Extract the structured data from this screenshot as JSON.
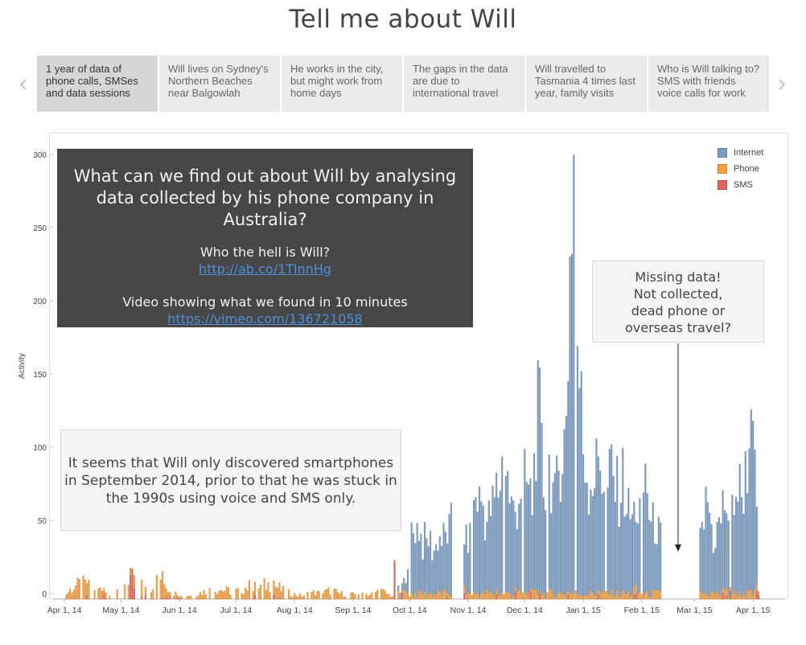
{
  "page": {
    "title": "Tell me about Will"
  },
  "navigation": {
    "prev_glyph": "‹",
    "next_glyph": "›",
    "tabs": [
      {
        "label": "1 year of data of phone calls, SMSes and data sessions",
        "active": true
      },
      {
        "label": "Will lives on Sydney's Northern Beaches near Balgowlah",
        "active": false
      },
      {
        "label": "He works in the city, but might work from home days",
        "active": false
      },
      {
        "label": "The gaps in the data are due to international travel",
        "active": false
      },
      {
        "label": "Will travelled to Tasmania 4 times last year, family visits",
        "active": false
      },
      {
        "label": "Who is Will talking to? SMS with friends voice calls for work",
        "active": false
      }
    ]
  },
  "overlay": {
    "heading": "What can we find out about  Will by analysing data collected by his phone company in Australia?",
    "question": "Who the hell is Will?",
    "link1": "http://ab.co/1TlnnHg",
    "video_text": "Video showing what we found in 10 minutes",
    "link2": "https://vimeo.com/136721058"
  },
  "annotations": {
    "missing": "Missing data!\nNot collected,\ndead phone or\noverseas travel?",
    "smartphone": "It seems that Will only discovered smartphones in September 2014, prior to that he was stuck in the 1990s using voice and SMS only."
  },
  "chart_data": {
    "type": "bar",
    "stacked": true,
    "x_start": "2014-03-26",
    "x_end": "2015-04-18",
    "xlabel": "",
    "ylabel": "Activity",
    "ylim": [
      0,
      300
    ],
    "yticks": [
      0,
      50,
      100,
      150,
      200,
      250,
      300
    ],
    "xticks": [
      {
        "label": "Apr 1, 14",
        "date": "2014-04-01"
      },
      {
        "label": "May 1, 14",
        "date": "2014-05-01"
      },
      {
        "label": "Jun 1, 14",
        "date": "2014-06-01"
      },
      {
        "label": "Jul 1, 14",
        "date": "2014-07-01"
      },
      {
        "label": "Aug 1, 14",
        "date": "2014-08-01"
      },
      {
        "label": "Sep 1, 14",
        "date": "2014-09-01"
      },
      {
        "label": "Oct 1, 14",
        "date": "2014-10-01"
      },
      {
        "label": "Nov 1, 14",
        "date": "2014-11-01"
      },
      {
        "label": "Dec 1, 14",
        "date": "2014-12-01"
      },
      {
        "label": "Jan 1, 15",
        "date": "2015-01-01"
      },
      {
        "label": "Feb 1, 15",
        "date": "2015-02-01"
      },
      {
        "label": "Mar 1, 15",
        "date": "2015-03-01"
      },
      {
        "label": "Apr 1, 15",
        "date": "2015-04-01"
      }
    ],
    "legend_position": "top-right",
    "grid": false,
    "colors": {
      "Internet": "#7b9dc5",
      "Phone": "#f3a141",
      "SMS": "#e0665d"
    },
    "series_names": [
      "Internet",
      "Phone",
      "SMS"
    ],
    "internet_points": [
      [
        "2014-09-25",
        3
      ],
      [
        "2014-09-27",
        5
      ],
      [
        "2014-09-29",
        10
      ],
      [
        "2014-10-01",
        45
      ],
      [
        "2014-10-03",
        52
      ],
      [
        "2014-10-05",
        55
      ],
      [
        "2014-10-08",
        40
      ],
      [
        "2014-10-11",
        44
      ],
      [
        "2014-10-14",
        35
      ],
      [
        "2014-10-17",
        44
      ],
      [
        "2014-10-20",
        42
      ],
      [
        "2014-10-23",
        56
      ],
      [
        "2014-10-26",
        0
      ],
      [
        "2014-10-28",
        0
      ],
      [
        "2014-10-30",
        40
      ],
      [
        "2014-11-02",
        45
      ],
      [
        "2014-11-05",
        78
      ],
      [
        "2014-11-08",
        75
      ],
      [
        "2014-11-11",
        55
      ],
      [
        "2014-11-14",
        70
      ],
      [
        "2014-11-17",
        85
      ],
      [
        "2014-11-20",
        110
      ],
      [
        "2014-11-23",
        78
      ],
      [
        "2014-11-26",
        60
      ],
      [
        "2014-11-29",
        85
      ],
      [
        "2014-12-02",
        88
      ],
      [
        "2014-12-05",
        68
      ],
      [
        "2014-12-08",
        160
      ],
      [
        "2014-12-11",
        85
      ],
      [
        "2014-12-14",
        100
      ],
      [
        "2014-12-17",
        75
      ],
      [
        "2014-12-20",
        110
      ],
      [
        "2014-12-23",
        130
      ],
      [
        "2014-12-25",
        232
      ],
      [
        "2014-12-27",
        300
      ],
      [
        "2014-12-29",
        200
      ],
      [
        "2015-01-01",
        120
      ],
      [
        "2015-01-04",
        88
      ],
      [
        "2015-01-07",
        95
      ],
      [
        "2015-01-10",
        110
      ],
      [
        "2015-01-13",
        75
      ],
      [
        "2015-01-16",
        100
      ],
      [
        "2015-01-19",
        80
      ],
      [
        "2015-01-22",
        90
      ],
      [
        "2015-01-25",
        65
      ],
      [
        "2015-01-28",
        60
      ],
      [
        "2015-01-31",
        65
      ],
      [
        "2015-02-03",
        95
      ],
      [
        "2015-02-06",
        55
      ],
      [
        "2015-02-09",
        50
      ],
      [
        "2015-02-22",
        0
      ],
      [
        "2015-02-28",
        0
      ],
      [
        "2015-03-05",
        50
      ],
      [
        "2015-03-08",
        78
      ],
      [
        "2015-03-11",
        40
      ],
      [
        "2015-03-14",
        55
      ],
      [
        "2015-03-17",
        70
      ],
      [
        "2015-03-20",
        60
      ],
      [
        "2015-03-23",
        85
      ],
      [
        "2015-03-26",
        80
      ],
      [
        "2015-03-29",
        105
      ],
      [
        "2015-03-31",
        123
      ],
      [
        "2015-04-02",
        95
      ],
      [
        "2015-04-04",
        0
      ]
    ],
    "gaps": [
      [
        "2014-10-24",
        "2014-10-29"
      ],
      [
        "2015-02-12",
        "2015-03-03"
      ]
    ],
    "phone_sms_points": [
      [
        "2014-04-01",
        3,
        0
      ],
      [
        "2014-04-05",
        10,
        0
      ],
      [
        "2014-04-10",
        14,
        0
      ],
      [
        "2014-04-15",
        11,
        4
      ],
      [
        "2014-04-22",
        8,
        4
      ],
      [
        "2014-04-28",
        6,
        0
      ],
      [
        "2014-05-03",
        12,
        4
      ],
      [
        "2014-05-06",
        7,
        15
      ],
      [
        "2014-05-10",
        15,
        0
      ],
      [
        "2014-05-14",
        10,
        4
      ],
      [
        "2014-05-18",
        12,
        3
      ],
      [
        "2014-05-22",
        20,
        0
      ],
      [
        "2014-05-26",
        8,
        3
      ],
      [
        "2014-05-30",
        5,
        2
      ],
      [
        "2014-06-05",
        3,
        0
      ],
      [
        "2014-06-10",
        5,
        0
      ],
      [
        "2014-06-15",
        7,
        0
      ],
      [
        "2014-06-20",
        9,
        0
      ],
      [
        "2014-06-25",
        8,
        0
      ],
      [
        "2014-07-01",
        7,
        0
      ],
      [
        "2014-07-05",
        10,
        0
      ],
      [
        "2014-07-10",
        12,
        4
      ],
      [
        "2014-07-15",
        12,
        0
      ],
      [
        "2014-07-20",
        14,
        4
      ],
      [
        "2014-07-25",
        8,
        0
      ],
      [
        "2014-07-30",
        5,
        0
      ],
      [
        "2014-08-05",
        3,
        0
      ],
      [
        "2014-08-10",
        6,
        0
      ],
      [
        "2014-08-15",
        5,
        0
      ],
      [
        "2014-08-20",
        8,
        0
      ],
      [
        "2014-08-25",
        5,
        0
      ],
      [
        "2014-09-01",
        4,
        0
      ],
      [
        "2014-09-05",
        6,
        0
      ],
      [
        "2014-09-10",
        4,
        0
      ],
      [
        "2014-09-15",
        8,
        0
      ],
      [
        "2014-09-20",
        4,
        0
      ],
      [
        "2014-09-23",
        2,
        25
      ]
    ]
  }
}
